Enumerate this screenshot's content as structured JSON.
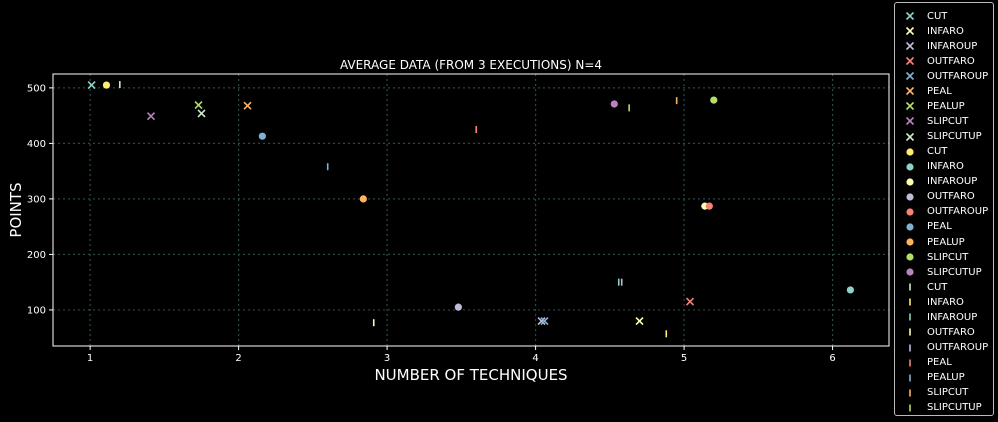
{
  "chart_data": {
    "type": "scatter",
    "title": "AVERAGE DATA (FROM 3 EXECUTIONS) N=4",
    "xlabel": "NUMBER OF TECHNIQUES",
    "ylabel": "POINTS",
    "xlim": [
      0.75,
      6.38
    ],
    "ylim": [
      35,
      525
    ],
    "xticks": [
      1,
      2,
      3,
      4,
      5,
      6
    ],
    "yticks": [
      100,
      200,
      300,
      400,
      500
    ],
    "grid": true,
    "legend_position": "outside-right",
    "series": [
      {
        "name": "CUT",
        "marker": "x",
        "color": "#8dd3c7",
        "points": [
          [
            1.01,
            505
          ]
        ]
      },
      {
        "name": "INFARO",
        "marker": "x",
        "color": "#feffb3",
        "points": [
          [
            4.7,
            80
          ]
        ]
      },
      {
        "name": "INFAROUP",
        "marker": "x",
        "color": "#bfbbd9",
        "points": [
          [
            4.04,
            80
          ]
        ]
      },
      {
        "name": "OUTFARO",
        "marker": "x",
        "color": "#fa8174",
        "points": [
          [
            5.04,
            115
          ]
        ]
      },
      {
        "name": "OUTFAROUP",
        "marker": "x",
        "color": "#81b1d2",
        "points": [
          [
            4.06,
            80
          ]
        ]
      },
      {
        "name": "PEAL",
        "marker": "x",
        "color": "#fdb462",
        "points": [
          [
            2.06,
            468
          ]
        ]
      },
      {
        "name": "PEALUP",
        "marker": "x",
        "color": "#b3de69",
        "points": [
          [
            1.73,
            469
          ]
        ]
      },
      {
        "name": "SLIPCUT",
        "marker": "x",
        "color": "#bc82bd",
        "points": [
          [
            1.41,
            449
          ]
        ]
      },
      {
        "name": "SLIPCUTUP",
        "marker": "x",
        "color": "#ccebc4",
        "points": [
          [
            1.75,
            454
          ]
        ]
      },
      {
        "name": "CUT",
        "marker": "o",
        "color": "#ffed6f",
        "points": [
          [
            1.11,
            505
          ]
        ]
      },
      {
        "name": "INFARO",
        "marker": "o",
        "color": "#8dd3c7",
        "points": [
          [
            6.12,
            136
          ]
        ]
      },
      {
        "name": "INFAROUP",
        "marker": "o",
        "color": "#feffb3",
        "points": [
          [
            5.14,
            287
          ]
        ]
      },
      {
        "name": "OUTFARO",
        "marker": "o",
        "color": "#bfbbd9",
        "points": [
          [
            3.48,
            105
          ]
        ]
      },
      {
        "name": "OUTFAROUP",
        "marker": "o",
        "color": "#fa8174",
        "points": [
          [
            5.17,
            287
          ]
        ]
      },
      {
        "name": "PEAL",
        "marker": "o",
        "color": "#81b1d2",
        "points": [
          [
            2.16,
            413
          ]
        ]
      },
      {
        "name": "PEALUP",
        "marker": "o",
        "color": "#fdb462",
        "points": [
          [
            2.84,
            300
          ]
        ]
      },
      {
        "name": "SLIPCUT",
        "marker": "o",
        "color": "#b3de69",
        "points": [
          [
            5.2,
            478
          ]
        ]
      },
      {
        "name": "SLIPCUTUP",
        "marker": "o",
        "color": "#bc82bd",
        "points": [
          [
            4.53,
            471
          ]
        ]
      },
      {
        "name": "CUT",
        "marker": "|",
        "color": "#ccebc4",
        "points": [
          [
            1.2,
            506
          ]
        ]
      },
      {
        "name": "INFARO",
        "marker": "|",
        "color": "#ffed6f",
        "points": [
          [
            4.88,
            57
          ]
        ]
      },
      {
        "name": "INFAROUP",
        "marker": "|",
        "color": "#8dd3c7",
        "points": [
          [
            4.56,
            150
          ]
        ]
      },
      {
        "name": "OUTFARO",
        "marker": "|",
        "color": "#feffb3",
        "points": [
          [
            2.91,
            77
          ]
        ]
      },
      {
        "name": "OUTFAROUP",
        "marker": "|",
        "color": "#bfbbd9",
        "points": [
          [
            4.58,
            150
          ]
        ]
      },
      {
        "name": "PEAL",
        "marker": "|",
        "color": "#fa8174",
        "points": [
          [
            3.6,
            425
          ]
        ]
      },
      {
        "name": "PEALUP",
        "marker": "|",
        "color": "#81b1d2",
        "points": [
          [
            2.6,
            358
          ]
        ]
      },
      {
        "name": "SLIPCUT",
        "marker": "|",
        "color": "#fdb462",
        "points": [
          [
            4.95,
            477
          ]
        ]
      },
      {
        "name": "SLIPCUTUP",
        "marker": "|",
        "color": "#b3de69",
        "points": [
          [
            4.63,
            464
          ]
        ]
      }
    ]
  }
}
